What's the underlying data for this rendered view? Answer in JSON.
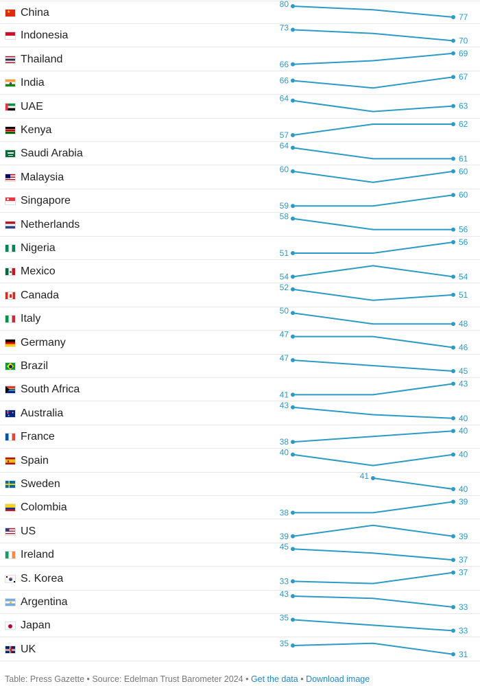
{
  "chart_data": {
    "type": "table",
    "line_color": "#2a9ac6",
    "rows": [
      {
        "country": "China",
        "flag": "cn",
        "values": [
          80,
          79,
          77
        ],
        "labels": [
          "80",
          "77"
        ]
      },
      {
        "country": "Indonesia",
        "flag": "id",
        "values": [
          73,
          72,
          70
        ],
        "labels": [
          "73",
          "70"
        ]
      },
      {
        "country": "Thailand",
        "flag": "th",
        "values": [
          66,
          67,
          69
        ],
        "labels": [
          "66",
          "69"
        ]
      },
      {
        "country": "India",
        "flag": "in",
        "values": [
          66,
          64,
          67
        ],
        "labels": [
          "66",
          "67"
        ]
      },
      {
        "country": "UAE",
        "flag": "ae",
        "values": [
          64,
          62,
          63
        ],
        "labels": [
          "64",
          "63"
        ]
      },
      {
        "country": "Kenya",
        "flag": "ke",
        "values": [
          57,
          62,
          62
        ],
        "labels": [
          "57",
          "62"
        ]
      },
      {
        "country": "Saudi Arabia",
        "flag": "sa",
        "values": [
          64,
          61,
          61
        ],
        "labels": [
          "64",
          "61"
        ]
      },
      {
        "country": "Malaysia",
        "flag": "my",
        "values": [
          60,
          58,
          60
        ],
        "labels": [
          "60",
          "60"
        ]
      },
      {
        "country": "Singapore",
        "flag": "sg",
        "values": [
          59,
          59,
          60
        ],
        "labels": [
          "59",
          "60"
        ]
      },
      {
        "country": "Netherlands",
        "flag": "nl",
        "values": [
          58,
          56,
          56
        ],
        "labels": [
          "58",
          "56"
        ]
      },
      {
        "country": "Nigeria",
        "flag": "ng",
        "values": [
          51,
          51,
          56
        ],
        "labels": [
          "51",
          "56"
        ]
      },
      {
        "country": "Mexico",
        "flag": "mx",
        "values": [
          54,
          56,
          54
        ],
        "labels": [
          "54",
          "54"
        ]
      },
      {
        "country": "Canada",
        "flag": "ca",
        "values": [
          52,
          50,
          51
        ],
        "labels": [
          "52",
          "51"
        ]
      },
      {
        "country": "Italy",
        "flag": "it",
        "values": [
          50,
          48,
          48
        ],
        "labels": [
          "50",
          "48"
        ]
      },
      {
        "country": "Germany",
        "flag": "de",
        "values": [
          47,
          47,
          46
        ],
        "labels": [
          "47",
          "46"
        ]
      },
      {
        "country": "Brazil",
        "flag": "br",
        "values": [
          47,
          46,
          45
        ],
        "labels": [
          "47",
          "45"
        ]
      },
      {
        "country": "South Africa",
        "flag": "za",
        "values": [
          41,
          41,
          43
        ],
        "labels": [
          "41",
          "43"
        ]
      },
      {
        "country": "Australia",
        "flag": "au",
        "values": [
          43,
          41,
          40
        ],
        "labels": [
          "43",
          "40"
        ]
      },
      {
        "country": "France",
        "flag": "fr",
        "values": [
          38,
          39,
          40
        ],
        "labels": [
          "38",
          "40"
        ]
      },
      {
        "country": "Spain",
        "flag": "es",
        "values": [
          40,
          38,
          40
        ],
        "labels": [
          "40",
          "40"
        ]
      },
      {
        "country": "Sweden",
        "flag": "se",
        "values": [
          null,
          41,
          40
        ],
        "labels": [
          "41",
          "40"
        ]
      },
      {
        "country": "Colombia",
        "flag": "co",
        "values": [
          38,
          38,
          39
        ],
        "labels": [
          "38",
          "39"
        ]
      },
      {
        "country": "US",
        "flag": "us",
        "values": [
          39,
          41,
          39
        ],
        "labels": [
          "39",
          "39"
        ]
      },
      {
        "country": "Ireland",
        "flag": "ie",
        "values": [
          45,
          42,
          37
        ],
        "labels": [
          "45",
          "37"
        ]
      },
      {
        "country": "S. Korea",
        "flag": "kr",
        "values": [
          33,
          32,
          37
        ],
        "labels": [
          "33",
          "37"
        ]
      },
      {
        "country": "Argentina",
        "flag": "ar",
        "values": [
          43,
          41,
          33
        ],
        "labels": [
          "43",
          "33"
        ]
      },
      {
        "country": "Japan",
        "flag": "jp",
        "values": [
          35,
          34,
          33
        ],
        "labels": [
          "35",
          "33"
        ]
      },
      {
        "country": "UK",
        "flag": "gb",
        "values": [
          35,
          36,
          31
        ],
        "labels": [
          "35",
          "31"
        ]
      }
    ]
  },
  "footer": {
    "prefix": "Table: Press Gazette • Source: Edelman Trust Barometer 2024 • ",
    "get_data": "Get the data",
    "sep": " • ",
    "download": "Download image"
  }
}
